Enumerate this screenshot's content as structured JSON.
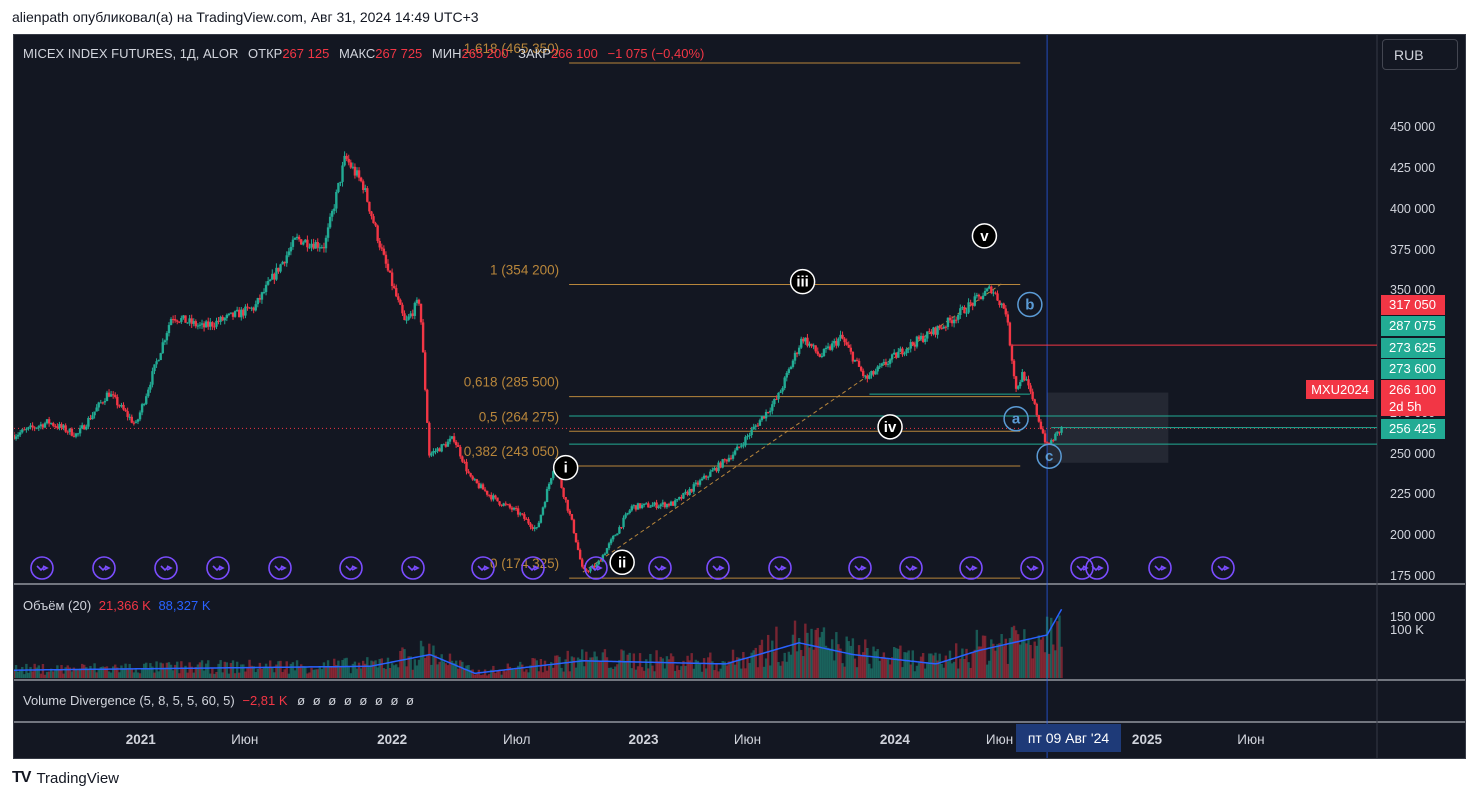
{
  "caption": "alienpath опубликовал(а) на TradingView.com, Авг 31, 2024 14:49 UTC+3",
  "legend": {
    "symbol": "MICEX INDEX FUTURES, 1Д, ALOR",
    "open_label": "ОТКР",
    "open": "267 125",
    "high_label": "МАКС",
    "high": "267 725",
    "low_label": "МИН",
    "low": "265 200",
    "close_label": "ЗАКР",
    "close": "266 100",
    "change": "−1 075 (−0,40%)"
  },
  "currency": "RUB",
  "volume_legend": {
    "name": "Объём (20)",
    "v1": "21,366 K",
    "v2": "88,327 K"
  },
  "vd_legend": {
    "name": "Volume Divergence (5, 8, 5, 5, 60, 5)",
    "value": "−2,81 K",
    "zeros": "ø ø ø ø ø ø ø ø"
  },
  "volume_axis_tick": "100 K",
  "crosshair_time": "пт 09 Авг '24",
  "symbol_tag": "MXU2024",
  "countdown": "2d 5h",
  "price_tags": [
    {
      "label": "317 050",
      "value": 317050,
      "color": "#f23645"
    },
    {
      "label": "287 075",
      "value": 287075,
      "color": "#22ab94"
    },
    {
      "label": "273 625",
      "value": 273625,
      "color": "#22ab94"
    },
    {
      "label": "273 600",
      "value": 273600,
      "color": "#22ab94"
    },
    {
      "label": "266 100",
      "value": 266100,
      "color": "#f23645"
    },
    {
      "label": "256 425",
      "value": 256425,
      "color": "#22ab94"
    }
  ],
  "colors": {
    "up": "#22ab94",
    "down": "#f23645",
    "fib": "#b8863b",
    "wave": "#ffffff",
    "corr": "#5b9bd5",
    "volume_ma": "#2962ff",
    "accent_purple": "#7b4dff"
  },
  "footer": {
    "brand": "TradingView",
    "logo_icon": "tv-logo-icon"
  },
  "chart_data": {
    "type": "candlestick",
    "title": "MICEX INDEX FUTURES, 1Д, ALOR",
    "ylim": [
      150000,
      465000
    ],
    "y_ticks": [
      150000,
      175000,
      200000,
      225000,
      250000,
      275000,
      300000,
      325000,
      350000,
      375000,
      400000,
      425000,
      450000
    ],
    "y_tick_labels": [
      "150 000",
      "175 000",
      "200 000",
      "225 000",
      "250 000",
      "275 000",
      "300 000",
      "325 000",
      "350 000",
      "375 000",
      "400 000",
      "425 000",
      "450 000"
    ],
    "x_ticks": [
      {
        "label": "2021",
        "date": "2021-01-01"
      },
      {
        "label": "Июн",
        "date": "2021-06-01"
      },
      {
        "label": "2022",
        "date": "2022-01-01"
      },
      {
        "label": "Июл",
        "date": "2022-07-01"
      },
      {
        "label": "2023",
        "date": "2023-01-01"
      },
      {
        "label": "Июн",
        "date": "2023-06-01"
      },
      {
        "label": "2024",
        "date": "2024-01-01"
      },
      {
        "label": "Июн",
        "date": "2024-06-01"
      },
      {
        "label": "2025",
        "date": "2025-01-01"
      },
      {
        "label": "Июн",
        "date": "2025-06-01"
      }
    ],
    "x_range": [
      "2020-07-01",
      "2025-12-01"
    ],
    "price_path": [
      [
        "2020-07-01",
        262000
      ],
      [
        "2020-08-20",
        270000
      ],
      [
        "2020-10-01",
        262000
      ],
      [
        "2020-11-15",
        288000
      ],
      [
        "2020-12-25",
        268000
      ],
      [
        "2021-02-15",
        335000
      ],
      [
        "2021-04-01",
        328000
      ],
      [
        "2021-06-15",
        340000
      ],
      [
        "2021-08-15",
        382000
      ],
      [
        "2021-09-25",
        378000
      ],
      [
        "2021-10-25",
        432000
      ],
      [
        "2021-11-20",
        415000
      ],
      [
        "2021-12-20",
        370000
      ],
      [
        "2022-01-20",
        330000
      ],
      [
        "2022-02-10",
        345000
      ],
      [
        "2022-02-24",
        250000
      ],
      [
        "2022-03-15",
        255000
      ],
      [
        "2022-04-01",
        260000
      ],
      [
        "2022-04-25",
        235000
      ],
      [
        "2022-06-01",
        222000
      ],
      [
        "2022-07-01",
        215000
      ],
      [
        "2022-07-30",
        204000
      ],
      [
        "2022-08-25",
        245000
      ],
      [
        "2022-09-20",
        207000
      ],
      [
        "2022-10-05",
        178000
      ],
      [
        "2022-10-25",
        182000
      ],
      [
        "2022-12-15",
        218000
      ],
      [
        "2023-02-15",
        220000
      ],
      [
        "2023-05-15",
        252000
      ],
      [
        "2023-07-15",
        285000
      ],
      [
        "2023-08-20",
        322000
      ],
      [
        "2023-09-15",
        310000
      ],
      [
        "2023-10-15",
        322000
      ],
      [
        "2023-11-20",
        296000
      ],
      [
        "2024-01-15",
        315000
      ],
      [
        "2024-03-15",
        330000
      ],
      [
        "2024-05-20",
        352000
      ],
      [
        "2024-06-10",
        338000
      ],
      [
        "2024-06-25",
        290000
      ],
      [
        "2024-07-05",
        300000
      ],
      [
        "2024-07-20",
        282000
      ],
      [
        "2024-08-09",
        255000
      ],
      [
        "2024-08-30",
        266000
      ]
    ],
    "volume_path": [
      [
        "2020-07-01",
        10000
      ],
      [
        "2021-12-01",
        15000
      ],
      [
        "2022-02-25",
        30000
      ],
      [
        "2022-05-01",
        6000
      ],
      [
        "2022-10-05",
        22000
      ],
      [
        "2023-05-01",
        18000
      ],
      [
        "2023-08-15",
        45000
      ],
      [
        "2023-11-01",
        30000
      ],
      [
        "2024-03-01",
        18000
      ],
      [
        "2024-05-01",
        35000
      ],
      [
        "2024-08-09",
        55000
      ],
      [
        "2024-08-30",
        88000
      ]
    ],
    "fib_levels": [
      {
        "label": "1,618 (465 350)",
        "value": 465350
      },
      {
        "label": "1 (354 200)",
        "value": 354200
      },
      {
        "label": "0,618 (285 500)",
        "value": 285500
      },
      {
        "label": "0,5 (264 275)",
        "value": 264275
      },
      {
        "label": "0,382 (243 050)",
        "value": 243050
      },
      {
        "label": "0 (174 325)",
        "value": 174325
      }
    ],
    "fib_x_range": [
      "2022-09-15",
      "2024-07-01"
    ],
    "wave_labels": [
      {
        "label": "i",
        "date": "2022-09-10",
        "value": 242000,
        "style": "white"
      },
      {
        "label": "ii",
        "date": "2022-12-01",
        "value": 184000,
        "style": "white"
      },
      {
        "label": "iii",
        "date": "2023-08-20",
        "value": 356000,
        "style": "white"
      },
      {
        "label": "iv",
        "date": "2023-12-25",
        "value": 267000,
        "style": "white"
      },
      {
        "label": "v",
        "date": "2024-05-10",
        "value": 384000,
        "style": "white"
      },
      {
        "label": "a",
        "date": "2024-06-25",
        "value": 272000,
        "style": "blue"
      },
      {
        "label": "b",
        "date": "2024-07-15",
        "value": 342000,
        "style": "blue"
      },
      {
        "label": "c",
        "date": "2024-08-12",
        "value": 249000,
        "style": "blue"
      }
    ],
    "crosshair_date": "2024-08-09",
    "projection_box": {
      "from": "2024-08-09",
      "to": "2025-02-01",
      "top": 288000,
      "bottom": 245000
    },
    "trendline": {
      "from": [
        "2022-10-05",
        178000
      ],
      "to": [
        "2024-06-05",
        355000
      ]
    }
  }
}
